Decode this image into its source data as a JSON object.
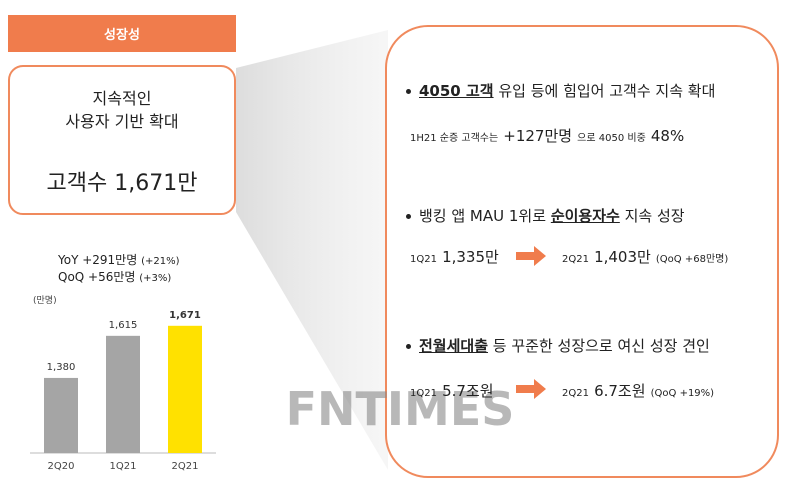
{
  "header": {
    "title": "성장성"
  },
  "summary": {
    "line1": "지속적인",
    "line2": "사용자 기반 확대",
    "headline": "고객수 1,671만"
  },
  "growth": {
    "yoy": "YoY +291만명",
    "yoy_pct": "(+21%)",
    "qoq": "QoQ +56만명",
    "qoq_pct": "(+3%)"
  },
  "chart_data": {
    "type": "bar",
    "unit_label": "(만명)",
    "categories": [
      "2Q20",
      "1Q21",
      "2Q21"
    ],
    "values": [
      1380,
      1615,
      1671
    ],
    "value_labels": [
      "1,380",
      "1,615",
      "1,671"
    ],
    "colors": [
      "#a5a5a5",
      "#a5a5a5",
      "#ffe100"
    ],
    "ylim": [
      961,
      1815
    ]
  },
  "bullets": [
    {
      "emph": "4050 고객",
      "rest": " 유입 등에 힘입어 고객수 지속 확대",
      "detail": {
        "a": "1H21 순증 고객수는",
        "b": "+127만명",
        "c": "으로 4050 비중",
        "d": "48%"
      }
    },
    {
      "lead": "뱅킹 앱 MAU 1위로 ",
      "emph": "순이용자수",
      "rest": " 지속 성장",
      "detail": {
        "from_label": "1Q21",
        "from_value": "1,335만",
        "to_label": "2Q21",
        "to_value": "1,403만",
        "note": "(QoQ +68만명)"
      }
    },
    {
      "emph": "전월세대출",
      "rest": " 등 꾸준한 성장으로 여신 성장 견인",
      "detail": {
        "from_label": "1Q21",
        "from_value": "5.7조원",
        "to_label": "2Q21",
        "to_value": "6.7조원",
        "note": "(QoQ +19%)"
      }
    }
  ],
  "watermark": "FNTIMES"
}
